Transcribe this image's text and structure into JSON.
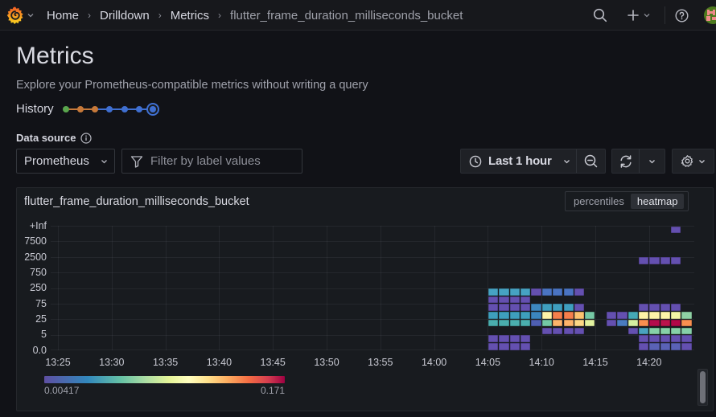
{
  "topbar": {
    "logo": "grafana-logo-icon",
    "breadcrumbs": [
      {
        "label": "Home"
      },
      {
        "label": "Drilldown"
      },
      {
        "label": "Metrics"
      },
      {
        "label": "flutter_frame_duration_milliseconds_bucket"
      }
    ],
    "separator": "›",
    "icons": [
      "search-icon",
      "plus-icon",
      "chevron-down-icon",
      "help-icon",
      "avatar"
    ]
  },
  "header": {
    "title": "Metrics",
    "subtitle": "Explore your Prometheus-compatible metrics without writing a query",
    "history_label": "History",
    "history_steps": [
      {
        "color": "#5aa64e"
      },
      {
        "color": "#c7793a"
      },
      {
        "color": "#c7793a"
      },
      {
        "color": "#3f6fd1"
      },
      {
        "color": "#3f6fd1"
      },
      {
        "color": "#3f6fd1"
      },
      {
        "color": "#3f6fd1",
        "current": true
      }
    ]
  },
  "controls": {
    "data_source_label": "Data source",
    "data_source_value": "Prometheus",
    "filter_placeholder": "Filter by label values",
    "filter_value": "",
    "time_range": "Last 1 hour"
  },
  "panel": {
    "title": "flutter_frame_duration_milliseconds_bucket",
    "view_toggle": [
      {
        "label": "percentiles",
        "active": false
      },
      {
        "label": "heatmap",
        "active": true
      }
    ]
  },
  "chart_data": {
    "type": "heatmap",
    "title": "flutter_frame_duration_milliseconds_bucket",
    "xlabel": "",
    "ylabel": "",
    "x_ticks": [
      "13:25",
      "13:30",
      "13:35",
      "13:40",
      "13:45",
      "13:50",
      "13:55",
      "14:00",
      "14:05",
      "14:10",
      "14:15",
      "14:20"
    ],
    "y_ticks": [
      "0.0",
      "5",
      "25",
      "75",
      "250",
      "750",
      "2500",
      "7500",
      "+Inf"
    ],
    "bucket_rows": 16,
    "x_interval": "1m",
    "grid": true,
    "color_scale": {
      "scheme": "Spectral",
      "min": "0.00417",
      "max": "0.171"
    },
    "segments": [
      {
        "row": 15,
        "start": "14:22",
        "colors": [
          "#6450b0"
        ]
      },
      {
        "row": 11,
        "start": "14:19",
        "colors": [
          "#6450b0",
          "#6450b0",
          "#6450b0",
          "#6450b0"
        ]
      },
      {
        "row": 7,
        "start": "14:05",
        "colors": [
          "#46a3c3",
          "#46a3c3",
          "#46a3c3",
          "#46a3c3",
          "#6450b0",
          "#4a74c2",
          "#4a74c2",
          "#4a74c2",
          "#6450b0"
        ]
      },
      {
        "row": 6,
        "start": "14:05",
        "colors": [
          "#6450b0",
          "#6450b0",
          "#6450b0",
          "#6450b0"
        ]
      },
      {
        "row": 5,
        "start": "14:05",
        "colors": [
          "#6450b0",
          "#6450b0",
          "#6450b0",
          "#6450b0",
          "#3d88bf",
          "#3f9fbf",
          "#3f9fbf",
          "#3f9fbf",
          "#6450b0"
        ]
      },
      {
        "row": 5,
        "start": "14:19",
        "colors": [
          "#6450b0",
          "#6450b0",
          "#6450b0",
          "#6450b0"
        ]
      },
      {
        "row": 4,
        "start": "14:05",
        "colors": [
          "#3e9fbd",
          "#3e9fbd",
          "#3e9fbd",
          "#3e9fbd",
          "#3b86be",
          "#fdf3a8",
          "#f57f4c",
          "#f57f4c",
          "#fdc370",
          "#76c9a6"
        ]
      },
      {
        "row": 4,
        "start": "14:16",
        "colors": [
          "#6450b0",
          "#6450b0",
          "#45a9b5",
          "#fdf4a8",
          "#fdf4a8",
          "#fdf4a8",
          "#f4f6a6",
          "#8fd2a5"
        ]
      },
      {
        "row": 3,
        "start": "14:05",
        "colors": [
          "#4aaeae",
          "#4aaeae",
          "#4aaeae",
          "#4aaeae",
          "#4e5fb2",
          "#74c8a6",
          "#fdb46a",
          "#fdb46a",
          "#fdd886",
          "#e2f2a0"
        ]
      },
      {
        "row": 3,
        "start": "14:16",
        "colors": [
          "#6450b0",
          "#4a7cc0",
          "#d4eea0",
          "#f98f50",
          "#b40b4c",
          "#bb124c",
          "#b00848",
          "#f98f50"
        ]
      },
      {
        "row": 2,
        "start": "14:10",
        "colors": [
          "#6450b0",
          "#6450b0",
          "#6450b0",
          "#6450b0"
        ]
      },
      {
        "row": 2,
        "start": "14:18",
        "colors": [
          "#6450b0",
          "#4aa3bf",
          "#86d1a8",
          "#86d1a8",
          "#86d1a8",
          "#86d1a8"
        ]
      },
      {
        "row": 1,
        "start": "14:05",
        "colors": [
          "#6450b0",
          "#6450b0",
          "#6450b0",
          "#6450b0"
        ]
      },
      {
        "row": 1,
        "start": "14:19",
        "colors": [
          "#6450b0",
          "#6450b0",
          "#6450b0",
          "#6450b0",
          "#6450b0"
        ]
      },
      {
        "row": 0,
        "start": "14:05",
        "colors": [
          "#6450b0",
          "#6450b0",
          "#6450b0",
          "#6450b0"
        ]
      },
      {
        "row": 0,
        "start": "14:19",
        "colors": [
          "#6450b0",
          "#5a62b6",
          "#5a62b6",
          "#5a62b6",
          "#6450b0"
        ]
      }
    ]
  }
}
